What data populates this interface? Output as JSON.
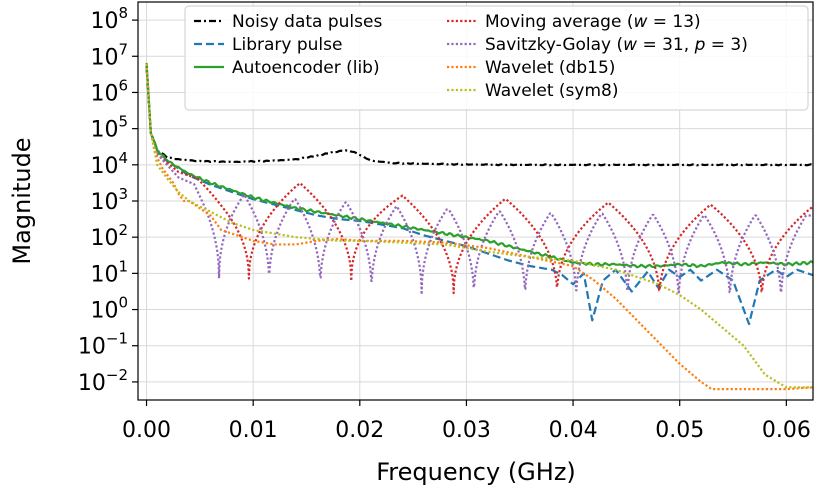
{
  "chart_data": {
    "type": "line",
    "title": "",
    "xlabel": "Frequency (GHz)",
    "ylabel": "Magnitude",
    "xlim": [
      -0.0008,
      0.0625
    ],
    "ylim_log10": [
      -2.5,
      8.5
    ],
    "yscale": "log",
    "grid": true,
    "legend_placement": "top-right",
    "x_ticks": [
      "0.00",
      "0.01",
      "0.02",
      "0.03",
      "0.04",
      "0.05",
      "0.06"
    ],
    "x_tick_values": [
      0.0,
      0.01,
      0.02,
      0.03,
      0.04,
      0.05,
      0.06
    ],
    "y_tick_exponents": [
      -2,
      -1,
      0,
      1,
      2,
      3,
      4,
      5,
      6,
      7,
      8
    ],
    "series": [
      {
        "name": "Noisy data pulses",
        "color": "#000000",
        "style": "dashdot",
        "points": [
          [
            0.0,
            6.7
          ],
          [
            0.0004,
            4.9
          ],
          [
            0.001,
            4.4
          ],
          [
            0.002,
            4.2
          ],
          [
            0.003,
            4.15
          ],
          [
            0.005,
            4.1
          ],
          [
            0.008,
            4.08
          ],
          [
            0.011,
            4.1
          ],
          [
            0.014,
            4.15
          ],
          [
            0.016,
            4.25
          ],
          [
            0.0175,
            4.35
          ],
          [
            0.0187,
            4.4
          ],
          [
            0.0195,
            4.35
          ],
          [
            0.021,
            4.12
          ],
          [
            0.023,
            4.05
          ],
          [
            0.026,
            4.03
          ],
          [
            0.03,
            4.01
          ],
          [
            0.035,
            4.0
          ],
          [
            0.04,
            4.0
          ],
          [
            0.05,
            4.0
          ],
          [
            0.0625,
            4.0
          ]
        ]
      },
      {
        "name": "Library pulse",
        "color": "#1f77b4",
        "style": "dashed",
        "points": [
          [
            0.0,
            6.8
          ],
          [
            0.0004,
            4.9
          ],
          [
            0.001,
            4.4
          ],
          [
            0.002,
            4.1
          ],
          [
            0.004,
            3.7
          ],
          [
            0.006,
            3.45
          ],
          [
            0.008,
            3.25
          ],
          [
            0.01,
            3.05
          ],
          [
            0.012,
            2.9
          ],
          [
            0.014,
            2.75
          ],
          [
            0.016,
            2.6
          ],
          [
            0.018,
            2.5
          ],
          [
            0.02,
            2.45
          ],
          [
            0.022,
            2.35
          ],
          [
            0.024,
            2.25
          ],
          [
            0.026,
            2.05
          ],
          [
            0.028,
            1.9
          ],
          [
            0.03,
            1.75
          ],
          [
            0.032,
            1.55
          ],
          [
            0.034,
            1.35
          ],
          [
            0.036,
            1.2
          ],
          [
            0.038,
            1.1
          ],
          [
            0.039,
            0.95
          ],
          [
            0.04,
            0.7
          ],
          [
            0.041,
            1.0
          ],
          [
            0.0418,
            -0.3
          ],
          [
            0.0428,
            0.8
          ],
          [
            0.044,
            1.1
          ],
          [
            0.0455,
            0.5
          ],
          [
            0.047,
            1.05
          ],
          [
            0.048,
            0.6
          ],
          [
            0.049,
            1.1
          ],
          [
            0.05,
            0.9
          ],
          [
            0.051,
            1.1
          ],
          [
            0.052,
            0.8
          ],
          [
            0.0535,
            1.1
          ],
          [
            0.055,
            0.8
          ],
          [
            0.0565,
            -0.4
          ],
          [
            0.0575,
            0.8
          ],
          [
            0.059,
            1.1
          ],
          [
            0.06,
            0.9
          ],
          [
            0.061,
            1.1
          ],
          [
            0.0625,
            0.95
          ]
        ]
      },
      {
        "name": "Autoencoder (lib)",
        "color": "#2ca02c",
        "style": "solid",
        "points": [
          [
            0.0,
            6.8
          ],
          [
            0.0004,
            4.9
          ],
          [
            0.001,
            4.4
          ],
          [
            0.002,
            4.1
          ],
          [
            0.004,
            3.75
          ],
          [
            0.006,
            3.5
          ],
          [
            0.008,
            3.3
          ],
          [
            0.01,
            3.1
          ],
          [
            0.012,
            2.95
          ],
          [
            0.014,
            2.8
          ],
          [
            0.016,
            2.7
          ],
          [
            0.018,
            2.6
          ],
          [
            0.02,
            2.5
          ],
          [
            0.022,
            2.4
          ],
          [
            0.024,
            2.3
          ],
          [
            0.026,
            2.2
          ],
          [
            0.028,
            2.1
          ],
          [
            0.03,
            2.0
          ],
          [
            0.032,
            1.9
          ],
          [
            0.034,
            1.75
          ],
          [
            0.036,
            1.6
          ],
          [
            0.038,
            1.45
          ],
          [
            0.04,
            1.3
          ],
          [
            0.042,
            1.25
          ],
          [
            0.044,
            1.25
          ],
          [
            0.046,
            1.2
          ],
          [
            0.048,
            1.2
          ],
          [
            0.05,
            1.25
          ],
          [
            0.052,
            1.2
          ],
          [
            0.054,
            1.3
          ],
          [
            0.056,
            1.25
          ],
          [
            0.058,
            1.3
          ],
          [
            0.06,
            1.25
          ],
          [
            0.0625,
            1.3
          ]
        ]
      },
      {
        "name": "Moving average (w = 13)",
        "color": "#d62728",
        "style": "dotted",
        "peak_envelope": [
          [
            0.001,
            4.3
          ],
          [
            0.003,
            3.8
          ],
          [
            0.005,
            3.6
          ],
          [
            0.007,
            3.5
          ],
          [
            0.01,
            3.45
          ],
          [
            0.014,
            3.5
          ],
          [
            0.019,
            3.4
          ],
          [
            0.024,
            3.15
          ],
          [
            0.029,
            3.05
          ],
          [
            0.034,
            3.05
          ],
          [
            0.039,
            3.0
          ],
          [
            0.044,
            2.95
          ],
          [
            0.049,
            2.9
          ],
          [
            0.054,
            2.9
          ],
          [
            0.0625,
            2.85
          ]
        ],
        "notches_x": [
          0.0096,
          0.0192,
          0.0288,
          0.0385,
          0.0481,
          0.0577
        ]
      },
      {
        "name": "Savitzky-Golay (w = 31, p = 3)",
        "color": "#9467bd",
        "style": "dotted",
        "peak_envelope": [
          [
            0.001,
            4.3
          ],
          [
            0.003,
            3.65
          ],
          [
            0.005,
            3.4
          ],
          [
            0.007,
            3.25
          ],
          [
            0.01,
            3.15
          ],
          [
            0.014,
            3.05
          ],
          [
            0.019,
            2.95
          ],
          [
            0.024,
            2.85
          ],
          [
            0.029,
            2.75
          ],
          [
            0.034,
            2.7
          ],
          [
            0.039,
            2.65
          ],
          [
            0.044,
            2.65
          ],
          [
            0.049,
            2.6
          ],
          [
            0.054,
            2.6
          ],
          [
            0.0625,
            2.6
          ]
        ],
        "notches_x": [
          0.0068,
          0.0115,
          0.0163,
          0.0211,
          0.0258,
          0.0307,
          0.0355,
          0.0403,
          0.0451,
          0.0499,
          0.0547,
          0.0595
        ]
      },
      {
        "name": "Wavelet (db15)",
        "color": "#ff7f0e",
        "style": "dotted",
        "points": [
          [
            0.0,
            6.8
          ],
          [
            0.0004,
            4.9
          ],
          [
            0.001,
            4.2
          ],
          [
            0.0015,
            3.9
          ],
          [
            0.002,
            3.7
          ],
          [
            0.0025,
            3.5
          ],
          [
            0.003,
            3.2
          ],
          [
            0.0035,
            3.0
          ],
          [
            0.004,
            3.0
          ],
          [
            0.005,
            2.8
          ],
          [
            0.006,
            2.6
          ],
          [
            0.007,
            2.2
          ],
          [
            0.008,
            2.1
          ],
          [
            0.009,
            2.0
          ],
          [
            0.01,
            1.9
          ],
          [
            0.012,
            1.8
          ],
          [
            0.014,
            1.8
          ],
          [
            0.016,
            1.9
          ],
          [
            0.018,
            1.95
          ],
          [
            0.02,
            1.9
          ],
          [
            0.024,
            1.9
          ],
          [
            0.028,
            1.85
          ],
          [
            0.032,
            1.7
          ],
          [
            0.036,
            1.45
          ],
          [
            0.04,
            1.2
          ],
          [
            0.042,
            0.8
          ],
          [
            0.044,
            0.3
          ],
          [
            0.046,
            -0.3
          ],
          [
            0.048,
            -0.9
          ],
          [
            0.05,
            -1.5
          ],
          [
            0.052,
            -2.0
          ],
          [
            0.053,
            -2.2
          ],
          [
            0.055,
            -2.2
          ],
          [
            0.06,
            -2.2
          ],
          [
            0.0625,
            -2.15
          ]
        ]
      },
      {
        "name": "Wavelet (sym8)",
        "color": "#bcbd22",
        "style": "dotted",
        "points": [
          [
            0.0,
            6.8
          ],
          [
            0.0004,
            4.9
          ],
          [
            0.001,
            4.0
          ],
          [
            0.002,
            3.6
          ],
          [
            0.003,
            3.25
          ],
          [
            0.004,
            3.0
          ],
          [
            0.005,
            2.85
          ],
          [
            0.006,
            2.7
          ],
          [
            0.008,
            2.4
          ],
          [
            0.01,
            2.2
          ],
          [
            0.012,
            2.1
          ],
          [
            0.014,
            2.0
          ],
          [
            0.016,
            1.95
          ],
          [
            0.018,
            1.9
          ],
          [
            0.02,
            1.9
          ],
          [
            0.024,
            1.85
          ],
          [
            0.028,
            1.8
          ],
          [
            0.032,
            1.6
          ],
          [
            0.036,
            1.45
          ],
          [
            0.04,
            1.35
          ],
          [
            0.044,
            1.1
          ],
          [
            0.048,
            0.7
          ],
          [
            0.05,
            0.4
          ],
          [
            0.052,
            0.0
          ],
          [
            0.054,
            -0.5
          ],
          [
            0.056,
            -1.0
          ],
          [
            0.058,
            -1.8
          ],
          [
            0.06,
            -2.15
          ],
          [
            0.0625,
            -2.15
          ]
        ]
      }
    ]
  },
  "legend": {
    "items": [
      {
        "label": "Noisy data pulses"
      },
      {
        "label": "Library pulse"
      },
      {
        "label": "Autoencoder (lib)"
      },
      {
        "label": "Moving average (",
        "w": "w",
        "rest": " = 13)"
      },
      {
        "label": "Savitzky-Golay (",
        "w": "w",
        "mid": " = 31, ",
        "p": "p",
        "rest": " = 3)"
      },
      {
        "label": "Wavelet (db15)"
      },
      {
        "label": "Wavelet (sym8)"
      }
    ]
  }
}
